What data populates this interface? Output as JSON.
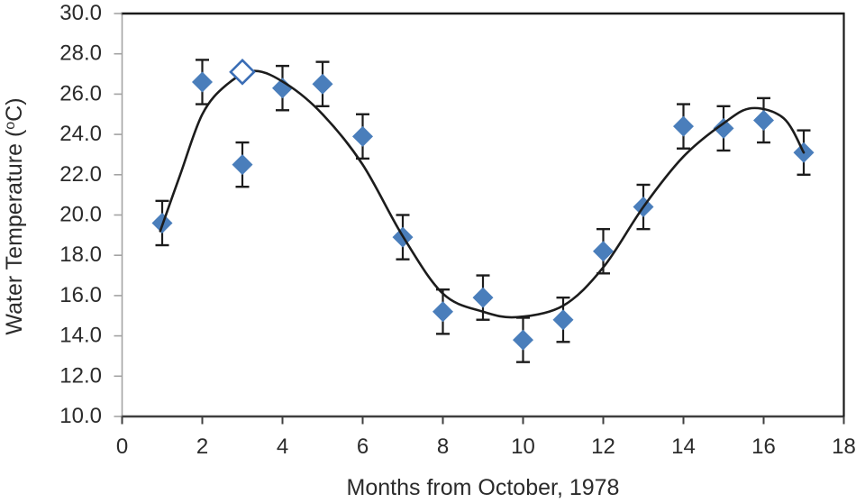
{
  "figure": {
    "background": "#ffffff",
    "description": "Scatter plot of water temperature versus months with error bars and seasonal fit curve"
  },
  "chart_data": {
    "type": "scatter",
    "title": "",
    "xlabel": "Months from October, 1978",
    "ylabel": "Water Temperature (°C)",
    "ylabel_parts": {
      "prefix": "Water Temperature (",
      "superscript": "o",
      "suffix": "C)"
    },
    "xlim": [
      0,
      18
    ],
    "ylim": [
      10,
      30
    ],
    "x_tick_values": [
      0,
      2,
      4,
      6,
      8,
      10,
      12,
      14,
      16,
      18
    ],
    "x_tick_labels": [
      "0",
      "2",
      "4",
      "6",
      "8",
      "10",
      "12",
      "14",
      "16",
      "18"
    ],
    "y_tick_values": [
      10,
      12,
      14,
      16,
      18,
      20,
      22,
      24,
      26,
      28,
      30
    ],
    "y_tick_labels": [
      "10.0",
      "12.0",
      "14.0",
      "16.0",
      "18.0",
      "20.0",
      "22.0",
      "24.0",
      "26.0",
      "28.0",
      "30.0"
    ],
    "grid": false,
    "legend": false,
    "series": [
      {
        "name": "observed-water-temperature",
        "type": "scatter",
        "marker": "filled-diamond",
        "marker_color": "#4a7ebb",
        "error_bar_color": "#1c1c1c",
        "y_error": 1.1,
        "x": [
          1,
          2,
          3,
          4,
          5,
          6,
          7,
          8,
          9,
          10,
          11,
          12,
          13,
          14,
          15,
          16,
          17
        ],
        "y": [
          19.6,
          26.6,
          22.5,
          26.3,
          26.5,
          23.9,
          18.9,
          15.2,
          15.9,
          13.8,
          14.8,
          18.2,
          20.4,
          24.4,
          24.3,
          24.7,
          23.1
        ]
      },
      {
        "name": "open-diamond-point",
        "type": "scatter",
        "marker": "open-diamond",
        "marker_color": "#3a6db5",
        "x": [
          3
        ],
        "y": [
          27.1
        ]
      },
      {
        "name": "seasonal-fit-curve",
        "type": "line",
        "color": "#1c1c1c",
        "points": [
          [
            0.95,
            19.2
          ],
          [
            1.45,
            22.0
          ],
          [
            2.0,
            25.0
          ],
          [
            2.6,
            26.45
          ],
          [
            3.3,
            27.15
          ],
          [
            4.1,
            26.5
          ],
          [
            5.0,
            25.0
          ],
          [
            6.0,
            22.5
          ],
          [
            7.0,
            18.95
          ],
          [
            8.0,
            16.1
          ],
          [
            9.0,
            15.2
          ],
          [
            9.85,
            14.93
          ],
          [
            11.0,
            15.5
          ],
          [
            12.0,
            17.4
          ],
          [
            13.0,
            20.4
          ],
          [
            14.0,
            22.9
          ],
          [
            15.0,
            24.55
          ],
          [
            15.7,
            25.3
          ],
          [
            16.5,
            24.8
          ],
          [
            17.0,
            23.1
          ]
        ]
      }
    ],
    "axis_colors": {
      "left": "#a3a3a3",
      "bottom": "#3f3f3f",
      "top": "#1a1a1a",
      "right": "#1a1a1a",
      "text": "#2b2b2b"
    }
  }
}
